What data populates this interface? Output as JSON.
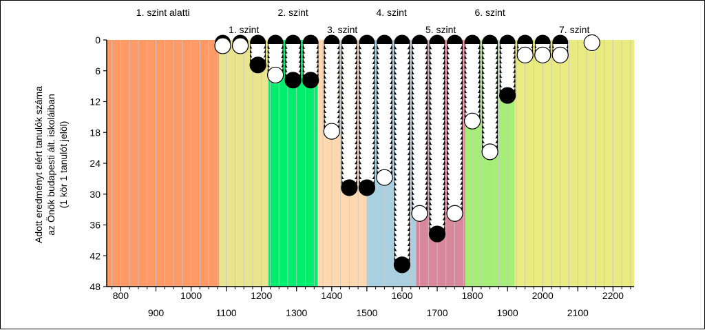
{
  "chart_data": {
    "type": "scatter",
    "ylabel_lines": [
      "Adott eredményt elért tanulók száma",
      "az Önök budapesti ált. iskoláiban",
      "(1 kör 1 tanulót jelöl)"
    ],
    "xlim": [
      760,
      2260
    ],
    "ylim": [
      0,
      48
    ],
    "y_ticks": [
      0,
      6,
      12,
      18,
      24,
      30,
      36,
      42,
      48
    ],
    "x_ticks_upper": [
      800,
      1000,
      1100,
      1200,
      1300,
      1400,
      1500,
      1600,
      1700,
      1800,
      1900,
      2000,
      2100,
      2200
    ],
    "x_ticks_lower": [
      900,
      1100,
      1300,
      1500,
      1700,
      1900,
      2100
    ],
    "x_tick_labels_upper": [
      "800",
      "1000",
      "1200",
      "1400",
      "1600",
      "1800",
      "2000",
      "2200"
    ],
    "x_tick_labels_lower": [
      "900",
      "1100",
      "1300",
      "1500",
      "1700",
      "1900",
      "2100"
    ],
    "bands": [
      {
        "label": "1. szint alatti",
        "from": 760,
        "to": 1080,
        "color": "#ff9966",
        "row": "top"
      },
      {
        "label": "1. szint",
        "from": 1080,
        "to": 1220,
        "color": "#e9e58f",
        "row": "bottom"
      },
      {
        "label": "2. szint",
        "from": 1220,
        "to": 1360,
        "color": "#00ee6e",
        "row": "top"
      },
      {
        "label": "3. szint",
        "from": 1360,
        "to": 1500,
        "color": "#ffd8b0",
        "row": "bottom"
      },
      {
        "label": "4. szint",
        "from": 1500,
        "to": 1640,
        "color": "#a8d0e0",
        "row": "top"
      },
      {
        "label": "5. szint",
        "from": 1640,
        "to": 1780,
        "color": "#d9879b",
        "row": "bottom"
      },
      {
        "label": "6. szint",
        "from": 1780,
        "to": 1920,
        "color": "#a6ee78",
        "row": "top"
      },
      {
        "label": "7. szint",
        "from": 1920,
        "to": 2260,
        "color": "#e9ea80",
        "row": "bottom"
      }
    ],
    "series": [
      {
        "x": [
          1090,
          1140,
          1190,
          1240,
          1290,
          1340,
          1400,
          1450,
          1500,
          1550,
          1600,
          1650,
          1700,
          1750,
          1800,
          1850,
          1900,
          1950,
          2000,
          2050,
          2140
        ],
        "y": [
          2,
          2,
          6,
          8,
          9,
          9,
          19,
          30,
          30,
          28,
          45,
          35,
          39,
          35,
          17,
          23,
          12,
          4,
          4,
          4,
          1
        ]
      }
    ],
    "colors": {
      "circle_dark": "#000000",
      "circle_light": "#ffffff",
      "grid": "#c8c8c8",
      "axis": "#000000"
    }
  }
}
